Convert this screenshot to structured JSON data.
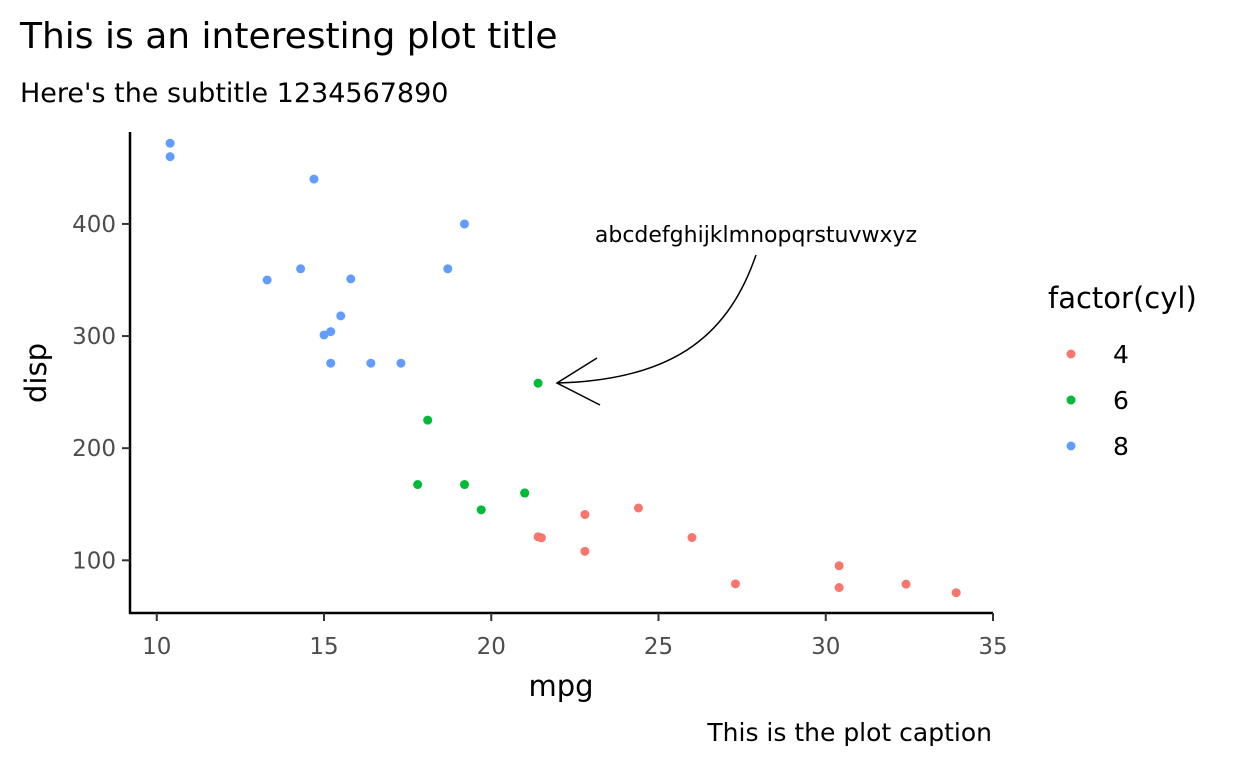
{
  "title": "This is an interesting plot title",
  "subtitle": "Here's the subtitle 1234567890",
  "caption": "This is the plot caption",
  "annotation": {
    "text": "abcdefghijklmnopqrstuvwxyz",
    "target": {
      "x": 21.4,
      "y": 258
    }
  },
  "chart_data": {
    "type": "scatter",
    "title": "This is an interesting plot title",
    "subtitle": "Here's the subtitle 1234567890",
    "xlabel": "mpg",
    "ylabel": "disp",
    "xlim": [
      9.2,
      35.0
    ],
    "ylim": [
      53,
      482
    ],
    "xticks": [
      10,
      15,
      20,
      25,
      30,
      35
    ],
    "yticks": [
      100,
      200,
      300,
      400
    ],
    "grid": false,
    "legend": {
      "title": "factor(cyl)",
      "position": "right"
    },
    "series": [
      {
        "name": "4",
        "color": "#F8766D",
        "points": [
          [
            22.8,
            108
          ],
          [
            24.4,
            146.7
          ],
          [
            22.8,
            140.8
          ],
          [
            32.4,
            78.7
          ],
          [
            30.4,
            75.7
          ],
          [
            33.9,
            71.1
          ],
          [
            21.5,
            120.1
          ],
          [
            27.3,
            79
          ],
          [
            26,
            120.3
          ],
          [
            30.4,
            95.1
          ],
          [
            21.4,
            121
          ]
        ]
      },
      {
        "name": "6",
        "color": "#00BA38",
        "points": [
          [
            21,
            160
          ],
          [
            21,
            160
          ],
          [
            21.4,
            258
          ],
          [
            18.1,
            225
          ],
          [
            19.2,
            167.6
          ],
          [
            17.8,
            167.6
          ],
          [
            19.7,
            145
          ]
        ]
      },
      {
        "name": "8",
        "color": "#619CFF",
        "points": [
          [
            18.7,
            360
          ],
          [
            14.3,
            360
          ],
          [
            16.4,
            275.8
          ],
          [
            17.3,
            275.8
          ],
          [
            15.2,
            275.8
          ],
          [
            10.4,
            472
          ],
          [
            10.4,
            460
          ],
          [
            14.7,
            440
          ],
          [
            15.5,
            318
          ],
          [
            15.2,
            304
          ],
          [
            13.3,
            350
          ],
          [
            19.2,
            400
          ],
          [
            15.8,
            351
          ],
          [
            15,
            301
          ]
        ]
      }
    ]
  }
}
